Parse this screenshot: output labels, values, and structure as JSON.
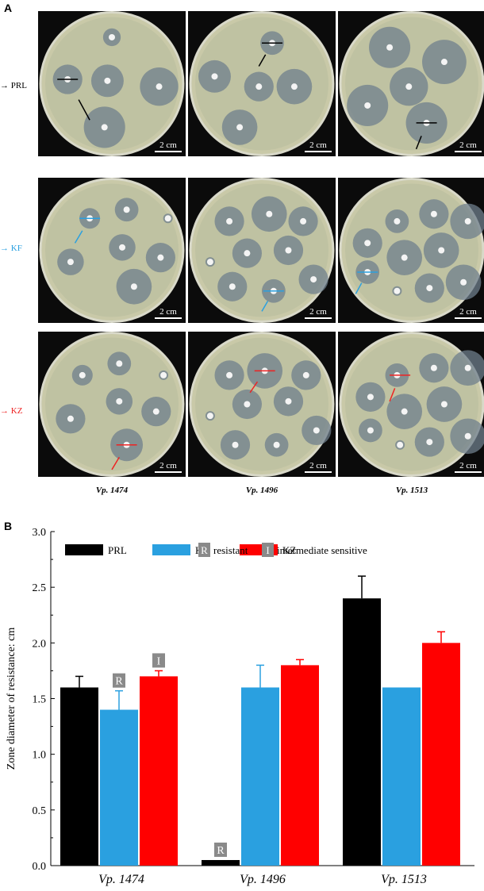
{
  "panelA": {
    "letter": "A",
    "rows": [
      {
        "label": "PRL",
        "color": "#000000"
      },
      {
        "label": "KF",
        "color": "#2aa0e0"
      },
      {
        "label": "KZ",
        "color": "#ee2222"
      }
    ],
    "columns": [
      "Vp. 1474",
      "Vp. 1496",
      "Vp. 1513"
    ],
    "scale_text": "2 cm"
  },
  "panelB": {
    "letter": "B"
  },
  "chart_data": {
    "type": "bar",
    "categories": [
      "Vp. 1474",
      "Vp. 1496",
      "Vp. 1513"
    ],
    "series": [
      {
        "name": "PRL",
        "color": "#000000",
        "values": [
          1.6,
          0.05,
          2.4
        ],
        "errors": [
          0.1,
          0,
          0.2
        ]
      },
      {
        "name": "KF",
        "color": "#2aa0e0",
        "values": [
          1.4,
          1.6,
          1.6
        ],
        "errors": [
          0.17,
          0.2,
          0
        ]
      },
      {
        "name": "KZ",
        "color": "#ff0000",
        "values": [
          1.7,
          1.8,
          2.0
        ],
        "errors": [
          0.05,
          0.05,
          0.1
        ]
      }
    ],
    "legend_keys": [
      {
        "symbol": "R",
        "text": "resistant"
      },
      {
        "symbol": "I",
        "text": "intermediate sensitive"
      }
    ],
    "annotations": [
      {
        "category": "Vp. 1474",
        "series": "KF",
        "symbol": "R"
      },
      {
        "category": "Vp. 1474",
        "series": "KZ",
        "symbol": "I"
      },
      {
        "category": "Vp. 1496",
        "series": "PRL",
        "symbol": "R"
      }
    ],
    "ylabel": "Zone diameter of resistance: cm",
    "xlabel": "",
    "ylim": [
      0.0,
      3.0
    ],
    "yticks": [
      "0.0",
      "0.5",
      "1.0",
      "1.5",
      "2.0",
      "2.5",
      "3.0"
    ],
    "legend_position": "top-left"
  }
}
